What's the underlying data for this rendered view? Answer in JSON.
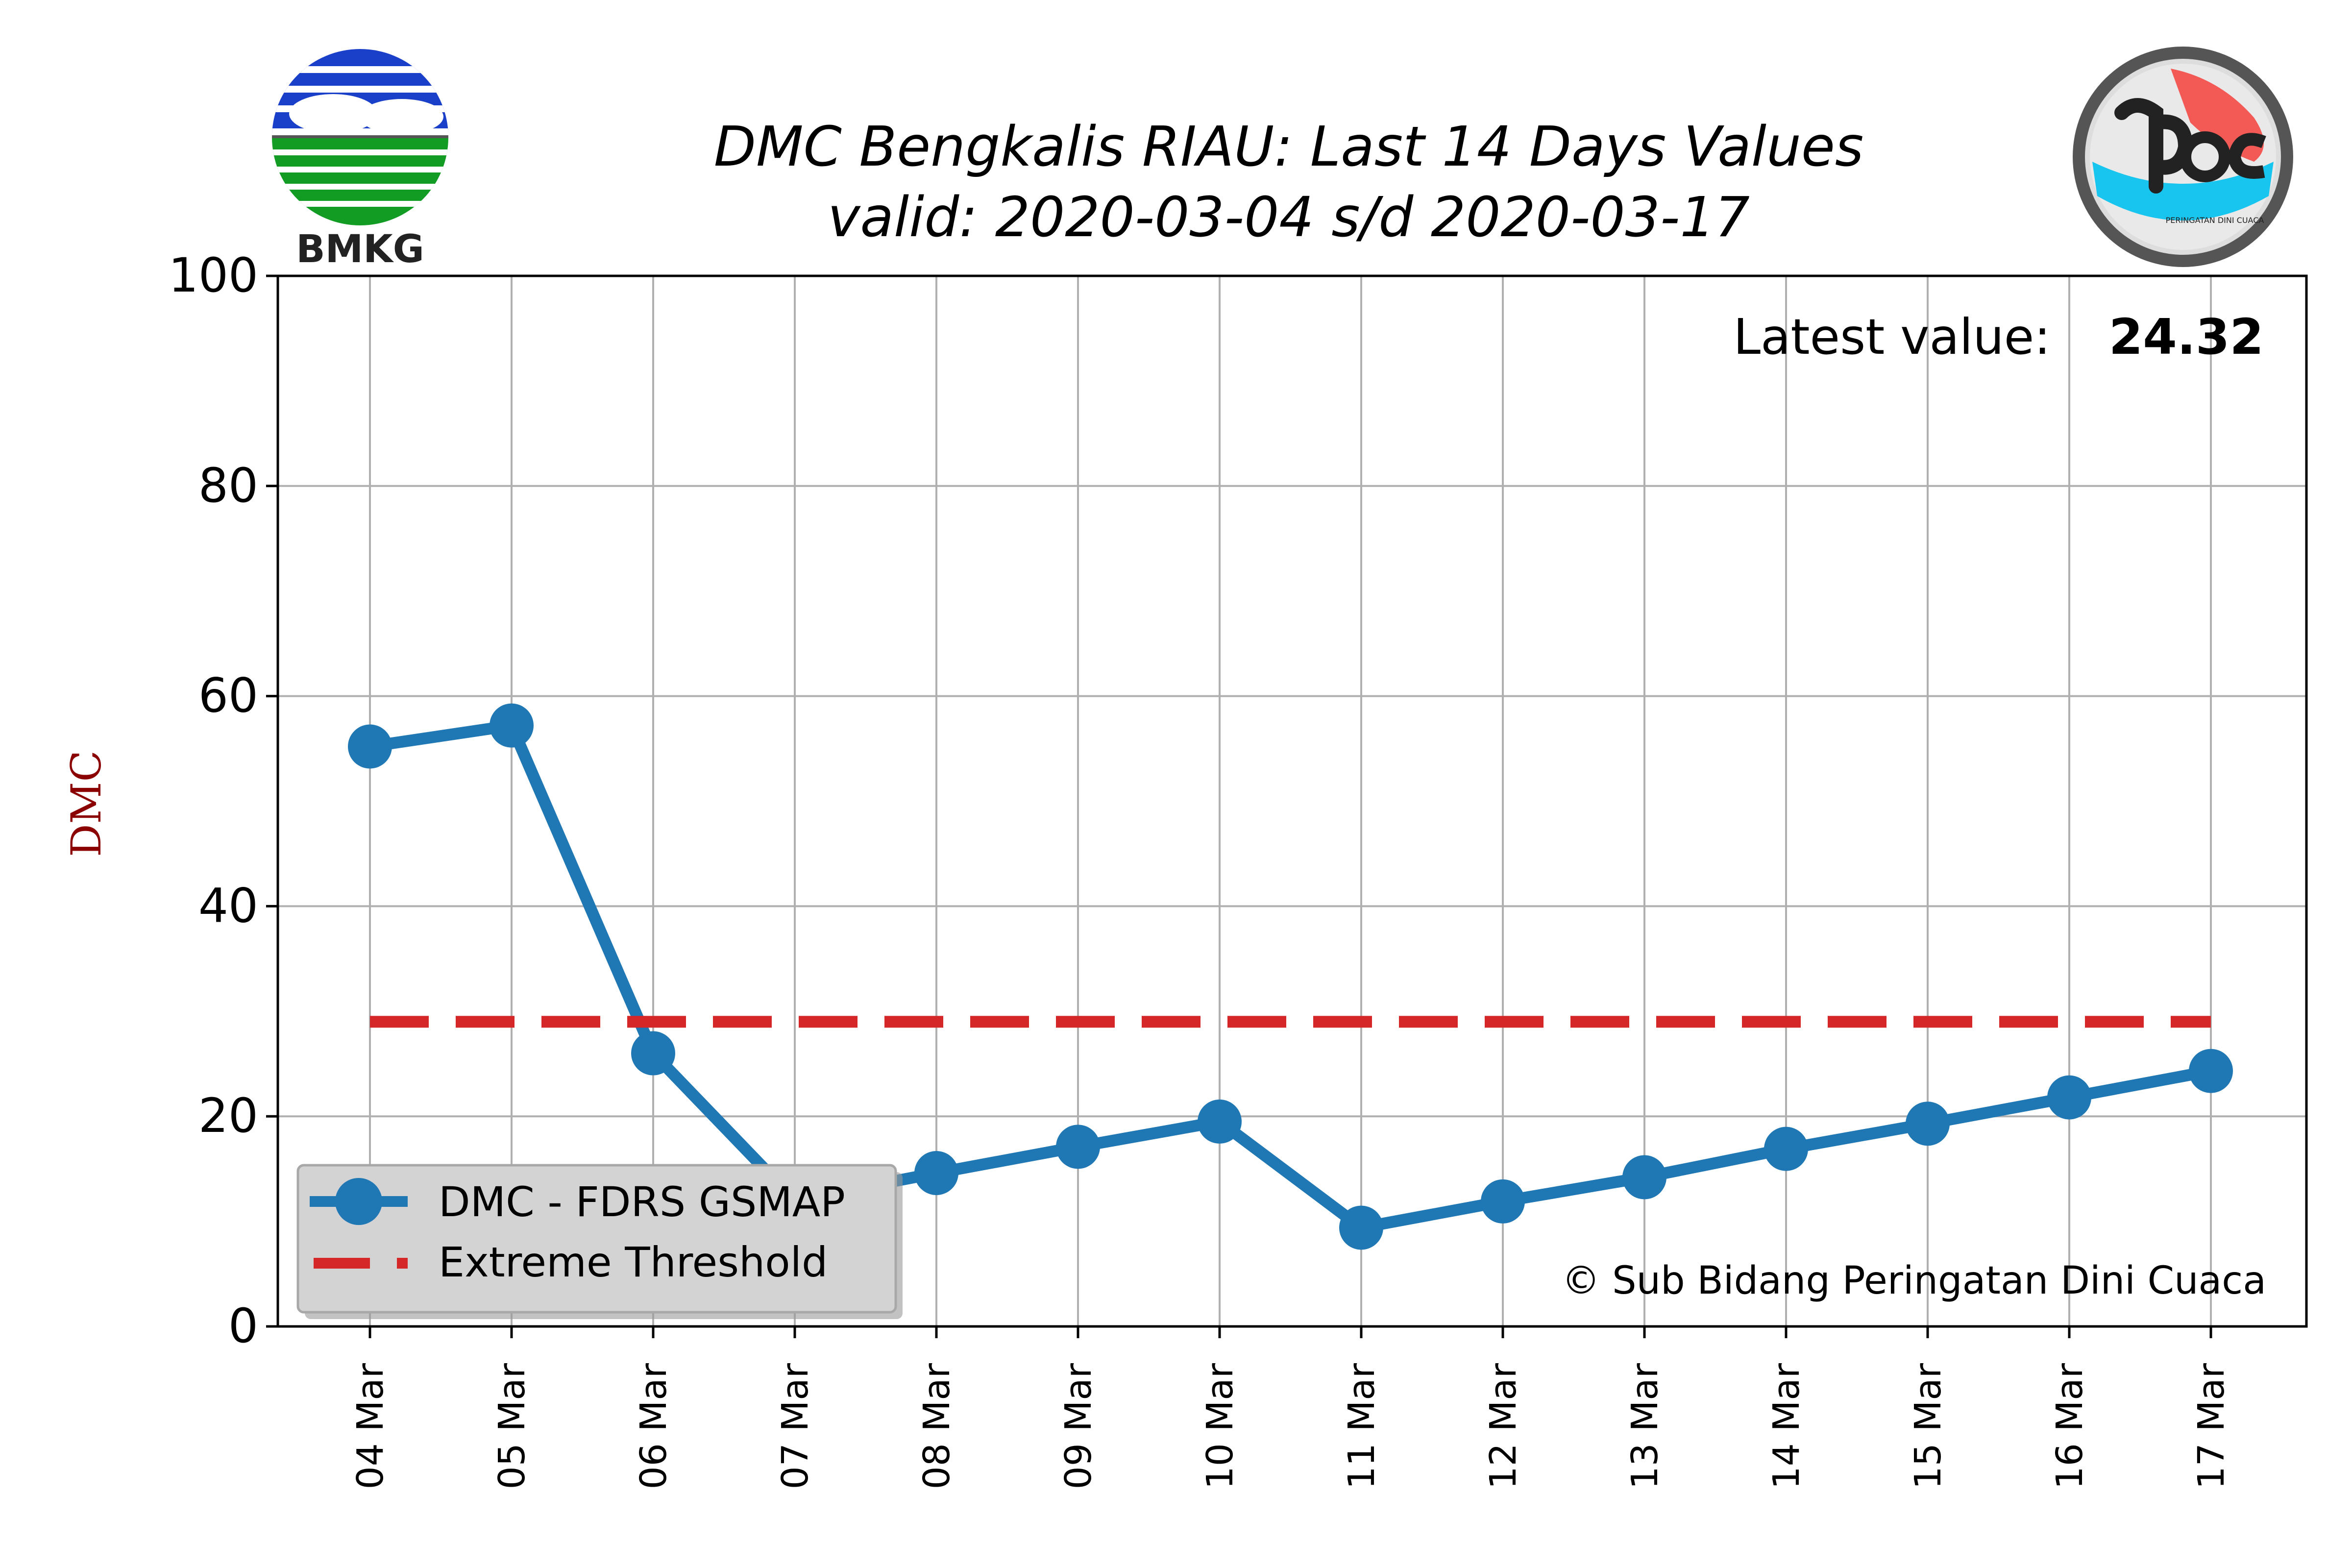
{
  "chart_data": {
    "type": "line",
    "title": "DMC Bengkalis RIAU: Last 14 Days Values",
    "subtitle": "valid: 2020-03-04 s/d 2020-03-17",
    "xlabel": "",
    "ylabel": "DMC",
    "ylim": [
      0,
      100
    ],
    "yticks": [
      "0",
      "20",
      "40",
      "60",
      "80",
      "100"
    ],
    "categories": [
      "04 Mar",
      "05 Mar",
      "06 Mar",
      "07 Mar",
      "08 Mar",
      "09 Mar",
      "10 Mar",
      "11 Mar",
      "12 Mar",
      "13 Mar",
      "14 Mar",
      "15 Mar",
      "16 Mar",
      "17 Mar"
    ],
    "grid": true,
    "legend_position": "lower-left",
    "series": [
      {
        "name": "DMC - FDRS GSMAP",
        "color": "#1f77b4",
        "style": "line-marker",
        "values": [
          55.2,
          57.2,
          26.0,
          12.0,
          14.6,
          17.1,
          19.5,
          9.4,
          11.9,
          14.2,
          16.9,
          19.3,
          21.8,
          24.32
        ]
      },
      {
        "name": "Extreme Threshold",
        "color": "#d62728",
        "style": "dashed",
        "values": [
          29,
          29,
          29,
          29,
          29,
          29,
          29,
          29,
          29,
          29,
          29,
          29,
          29,
          29
        ]
      }
    ],
    "annotations": {
      "latest_label": "Latest value:",
      "latest_value": "24.32",
      "credit": "© Sub Bidang Peringatan Dini Cuaca"
    }
  },
  "logos": {
    "left_text": "BMKG",
    "right_text": "PERINGATAN DINI CUACA"
  }
}
